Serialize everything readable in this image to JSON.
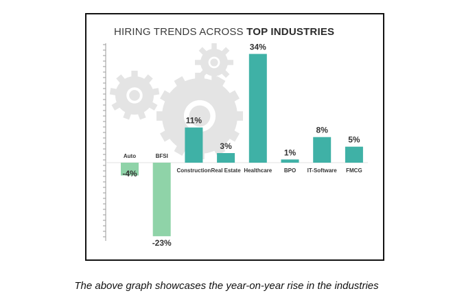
{
  "chart_data": {
    "type": "bar",
    "title": {
      "part1": "HIRING TRENDS ACROSS ",
      "part2": "TOP INDUSTRIES"
    },
    "categories": [
      "Auto",
      "BFSI",
      "Construction",
      "Real Estate",
      "Healthcare",
      "BPO",
      "IT-Software",
      "FMCG"
    ],
    "values": [
      -4,
      -23,
      11,
      3,
      34,
      1,
      8,
      5
    ],
    "value_labels": [
      "-4%",
      "-23%",
      "11%",
      "3%",
      "34%",
      "1%",
      "8%",
      "5%"
    ],
    "ylim": [
      -25,
      35
    ],
    "grid": false,
    "colors": {
      "positive": "#3fb1a6",
      "negative": "#8fd3a8",
      "gear": "#e4e4e4",
      "axis": "#9a9a9a"
    }
  },
  "caption": "The above graph showcases the year-on-year rise in the industries"
}
